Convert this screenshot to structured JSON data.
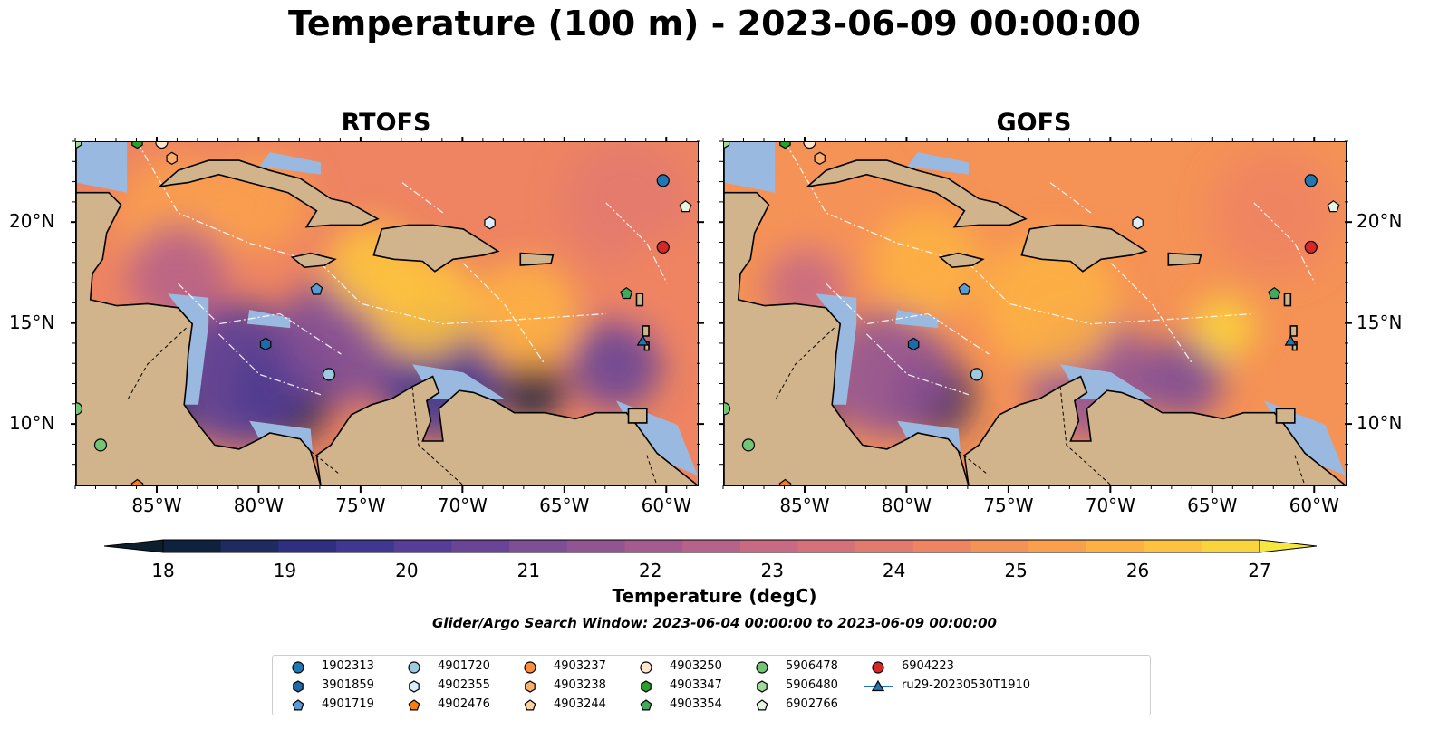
{
  "title": "Temperature (100 m) - 2023-06-09 00:00:00",
  "panels": [
    {
      "title": "RTOFS",
      "floats_present": [
        0,
        1,
        2,
        3,
        4,
        7,
        8,
        9,
        10,
        11,
        12,
        14,
        15,
        16,
        17,
        18,
        19,
        20
      ]
    },
    {
      "title": "GOFS",
      "floats_present": [
        0,
        1,
        2,
        3,
        4,
        7,
        8,
        9,
        10,
        11,
        12,
        14,
        15,
        16,
        17,
        18,
        19,
        20
      ]
    }
  ],
  "lon_ticks": [
    "85°W",
    "80°W",
    "75°W",
    "70°W",
    "65°W",
    "60°W"
  ],
  "lat_ticks": [
    "20°N",
    "15°N",
    "10°N"
  ],
  "colorbar": {
    "label": "Temperature (degC)",
    "min": 18,
    "max": 27,
    "ticks": [
      "18",
      "19",
      "20",
      "21",
      "22",
      "23",
      "24",
      "25",
      "26",
      "27"
    ],
    "colors": [
      "#0d1f2d",
      "#0e2240",
      "#1e2a60",
      "#2e2f80",
      "#3f3792",
      "#553d98",
      "#6a4597",
      "#7e4e96",
      "#925493",
      "#a55b8f",
      "#b7628a",
      "#c86a83",
      "#d6717a",
      "#e37a6e",
      "#ee8462",
      "#f59256",
      "#faa04c",
      "#fdb144",
      "#fdc33f",
      "#fad43c",
      "#f5e640"
    ]
  },
  "search_window": "Glider/Argo Search Window: 2023-06-04 00:00:00 to 2023-06-09 00:00:00",
  "legend": [
    {
      "label": "1902313",
      "marker": "circle",
      "color": "#1f77b4"
    },
    {
      "label": "3901859",
      "marker": "hexagon",
      "color": "#1f6aa8"
    },
    {
      "label": "4901719",
      "marker": "pentagon",
      "color": "#5b9bd5"
    },
    {
      "label": "4901720",
      "marker": "circle",
      "color": "#9ecae1"
    },
    {
      "label": "4902355",
      "marker": "hexagon",
      "color": "#ddeeff"
    },
    {
      "label": "4902476",
      "marker": "pentagon",
      "color": "#ff7f0e"
    },
    {
      "label": "4903237",
      "marker": "circle",
      "color": "#fd8d3c"
    },
    {
      "label": "4903238",
      "marker": "hexagon",
      "color": "#fdae6b"
    },
    {
      "label": "4903244",
      "marker": "pentagon",
      "color": "#fdd0a2"
    },
    {
      "label": "4903250",
      "marker": "circle",
      "color": "#fee6ce"
    },
    {
      "label": "4903347",
      "marker": "hexagon",
      "color": "#2ca02c"
    },
    {
      "label": "4903354",
      "marker": "pentagon",
      "color": "#41ab5d"
    },
    {
      "label": "5906478",
      "marker": "circle",
      "color": "#74c476"
    },
    {
      "label": "5906480",
      "marker": "hexagon",
      "color": "#a1d99b"
    },
    {
      "label": "6902766",
      "marker": "pentagon",
      "color": "#e5f5e0"
    },
    {
      "label": "6904223",
      "marker": "circle",
      "color": "#d62728"
    },
    {
      "label": "ru29-20230530T1910",
      "marker": "triangle-line",
      "color": "#1f77b4"
    }
  ],
  "map_colors": {
    "land": "#d2b48c",
    "shelf": "#9ab9e0",
    "outline": "#000000"
  }
}
